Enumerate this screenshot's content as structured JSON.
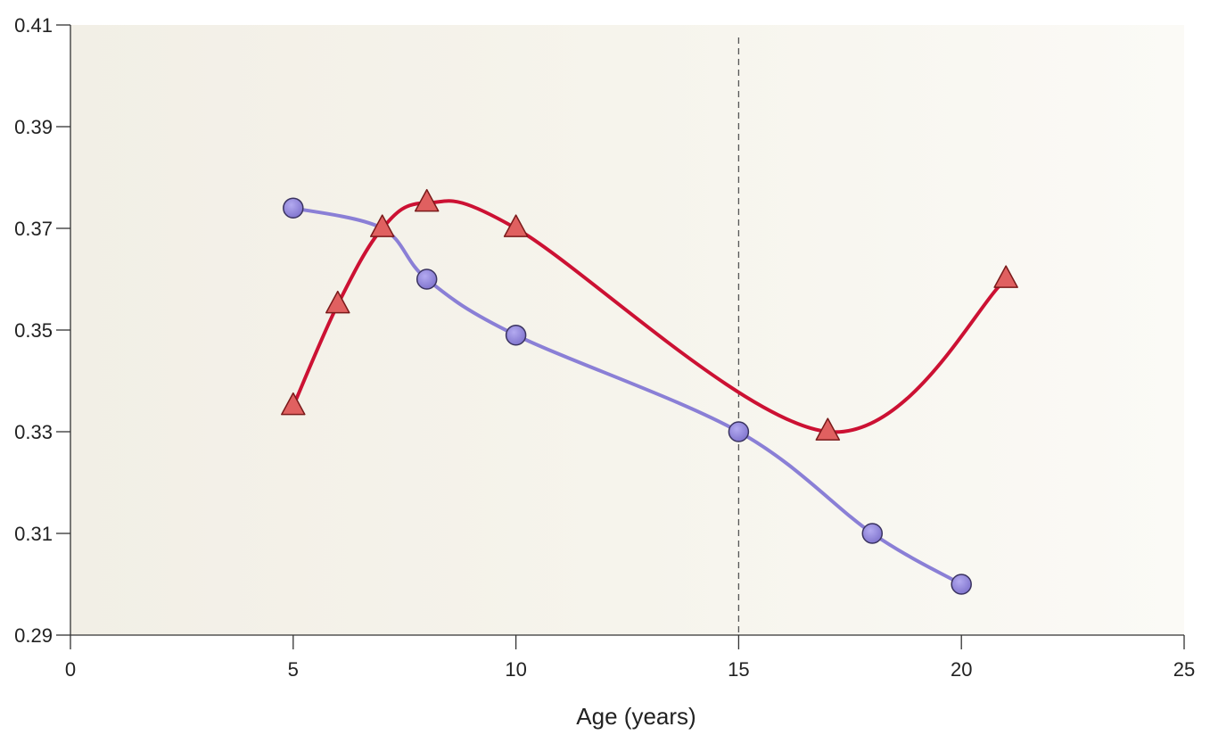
{
  "chart_data": {
    "type": "line",
    "title": "",
    "xlabel": "Age (years)",
    "ylabel": "",
    "xlim": [
      0,
      25
    ],
    "ylim": [
      0.29,
      0.41
    ],
    "x_ticks": [
      0,
      5,
      10,
      15,
      20,
      25
    ],
    "y_ticks": [
      0.29,
      0.31,
      0.33,
      0.35,
      0.37,
      0.39,
      0.41
    ],
    "x_tick_labels": [
      "0",
      "5",
      "10",
      "15",
      "20",
      "25"
    ],
    "y_tick_labels": [
      "0.29",
      "0.31",
      "0.33",
      "0.35",
      "0.37",
      "0.39",
      "0.41"
    ],
    "reference_line_x": 15,
    "grid": false,
    "series": [
      {
        "marker": "circle",
        "color": "#8a7fd6",
        "line_color": "#8a7fd6",
        "points": [
          {
            "x": 5,
            "y": 0.374
          },
          {
            "x": 7,
            "y": 0.37
          },
          {
            "x": 8,
            "y": 0.36
          },
          {
            "x": 10,
            "y": 0.349
          },
          {
            "x": 15,
            "y": 0.33
          },
          {
            "x": 18,
            "y": 0.31
          },
          {
            "x": 20,
            "y": 0.3
          }
        ],
        "visible_markers": [
          true,
          false,
          true,
          true,
          true,
          true,
          true
        ]
      },
      {
        "marker": "triangle",
        "color": "#e06060",
        "line_color": "#cc1133",
        "points": [
          {
            "x": 5,
            "y": 0.335
          },
          {
            "x": 6,
            "y": 0.355
          },
          {
            "x": 7,
            "y": 0.37
          },
          {
            "x": 8,
            "y": 0.375
          },
          {
            "x": 10,
            "y": 0.37
          },
          {
            "x": 17,
            "y": 0.33
          },
          {
            "x": 21,
            "y": 0.36
          }
        ],
        "visible_markers": [
          true,
          true,
          true,
          true,
          true,
          true,
          true
        ]
      }
    ]
  }
}
